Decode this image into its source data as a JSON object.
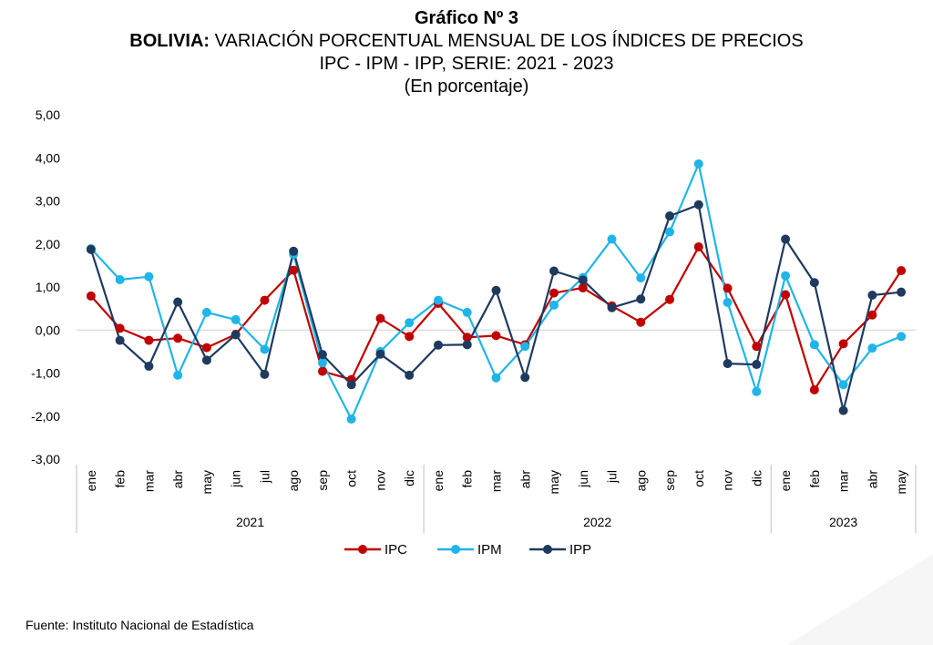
{
  "header": {
    "chart_number": "Gráfico Nº 3",
    "title_bold": "BOLIVIA:",
    "title_rest": "VARIACIÓN PORCENTUAL MENSUAL DE LOS ÍNDICES DE PRECIOS",
    "subtitle": "IPC - IPM - IPP, SERIE: 2021 - 2023",
    "unit_note": "(En porcentaje)"
  },
  "source": "Fuente: Instituto Nacional de Estadística",
  "chart_data": {
    "type": "line",
    "title": "BOLIVIA: VARIACIÓN PORCENTUAL MENSUAL DE LOS ÍNDICES DE PRECIOS",
    "ylim": [
      -3,
      5
    ],
    "yticks": [
      "5,00",
      "4,00",
      "3,00",
      "2,00",
      "1,00",
      "0,00",
      "-1,00",
      "-2,00",
      "-3,00"
    ],
    "ytick_values": [
      5,
      4,
      3,
      2,
      1,
      0,
      -1,
      -2,
      -3
    ],
    "categories": [
      "ene",
      "feb",
      "mar",
      "abr",
      "may",
      "jun",
      "jul",
      "ago",
      "sep",
      "oct",
      "nov",
      "dic",
      "ene",
      "feb",
      "mar",
      "abr",
      "may",
      "jun",
      "jul",
      "ago",
      "sep",
      "oct",
      "nov",
      "dic",
      "ene",
      "feb",
      "mar",
      "abr",
      "may"
    ],
    "groups": [
      {
        "label": "2021",
        "count": 12
      },
      {
        "label": "2022",
        "count": 12
      },
      {
        "label": "2023",
        "count": 5
      }
    ],
    "legend_position": "bottom",
    "series": [
      {
        "name": "IPC",
        "color": "#c00000",
        "values": [
          0.79,
          0.04,
          -0.24,
          -0.19,
          -0.41,
          -0.1,
          0.69,
          1.39,
          -0.96,
          -1.15,
          0.27,
          -0.15,
          0.62,
          -0.17,
          -0.13,
          -0.34,
          0.86,
          0.98,
          0.56,
          0.18,
          0.71,
          1.93,
          0.97,
          -0.38,
          0.82,
          -1.39,
          -0.32,
          0.35,
          1.38
        ]
      },
      {
        "name": "IPM",
        "color": "#1fb5e8",
        "values": [
          1.89,
          1.17,
          1.24,
          -1.05,
          0.41,
          0.24,
          -0.45,
          1.76,
          -0.76,
          -2.07,
          -0.5,
          0.17,
          0.69,
          0.41,
          -1.11,
          -0.38,
          0.58,
          1.22,
          2.11,
          1.21,
          2.28,
          3.86,
          0.64,
          -1.43,
          1.26,
          -0.34,
          -1.27,
          -0.42,
          -0.15
        ]
      },
      {
        "name": "IPP",
        "color": "#1f3a5f",
        "values": [
          1.87,
          -0.24,
          -0.84,
          0.65,
          -0.7,
          -0.11,
          -1.03,
          1.83,
          -0.57,
          -1.27,
          -0.56,
          -1.05,
          -0.35,
          -0.34,
          0.92,
          -1.1,
          1.37,
          1.16,
          0.52,
          0.72,
          2.65,
          2.91,
          -0.78,
          -0.8,
          2.11,
          1.1,
          -1.87,
          0.81,
          0.88
        ]
      }
    ]
  }
}
